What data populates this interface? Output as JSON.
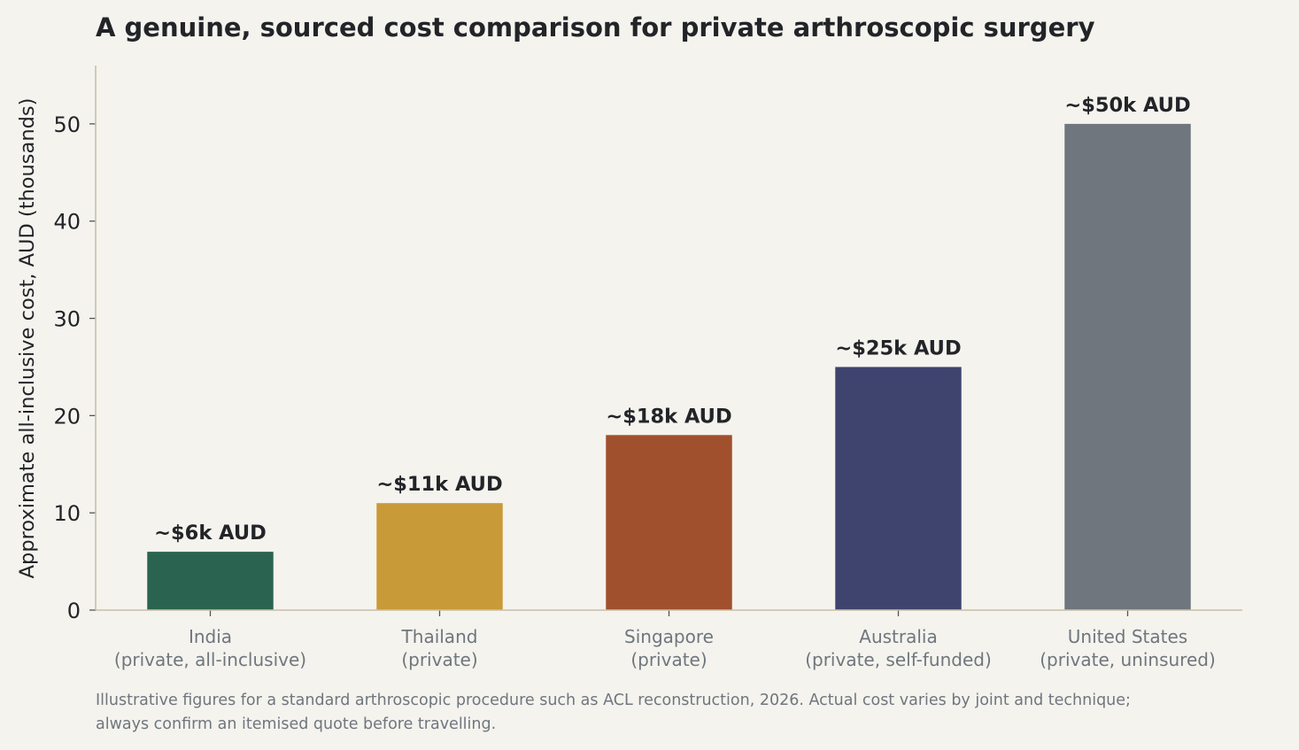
{
  "chart_data": {
    "type": "bar",
    "title": "A genuine, sourced cost comparison for private arthroscopic surgery",
    "ylabel": "Approximate all-inclusive cost, AUD (thousands)",
    "xlabel": "",
    "ylim": [
      0,
      56
    ],
    "yticks": [
      0,
      10,
      20,
      30,
      40,
      50
    ],
    "grid": false,
    "categories": [
      [
        "India",
        "(private, all-inclusive)"
      ],
      [
        "Thailand",
        "(private)"
      ],
      [
        "Singapore",
        "(private)"
      ],
      [
        "Australia",
        "(private, self-funded)"
      ],
      [
        "United States",
        "(private, uninsured)"
      ]
    ],
    "values": [
      6,
      11,
      18,
      25,
      50
    ],
    "data_labels": [
      "~$6k AUD",
      "~$11k AUD",
      "~$18k AUD",
      "~$25k AUD",
      "~$50k AUD"
    ],
    "colors": [
      "#2a6451",
      "#c99a38",
      "#a1502e",
      "#3e446e",
      "#6f767d"
    ],
    "axis_color": "#c9c0a6",
    "footnote": [
      "Illustrative figures for a standard arthroscopic procedure such as ACL reconstruction, 2026. Actual cost varies by joint and technique;",
      "always confirm an itemised quote before travelling."
    ]
  }
}
